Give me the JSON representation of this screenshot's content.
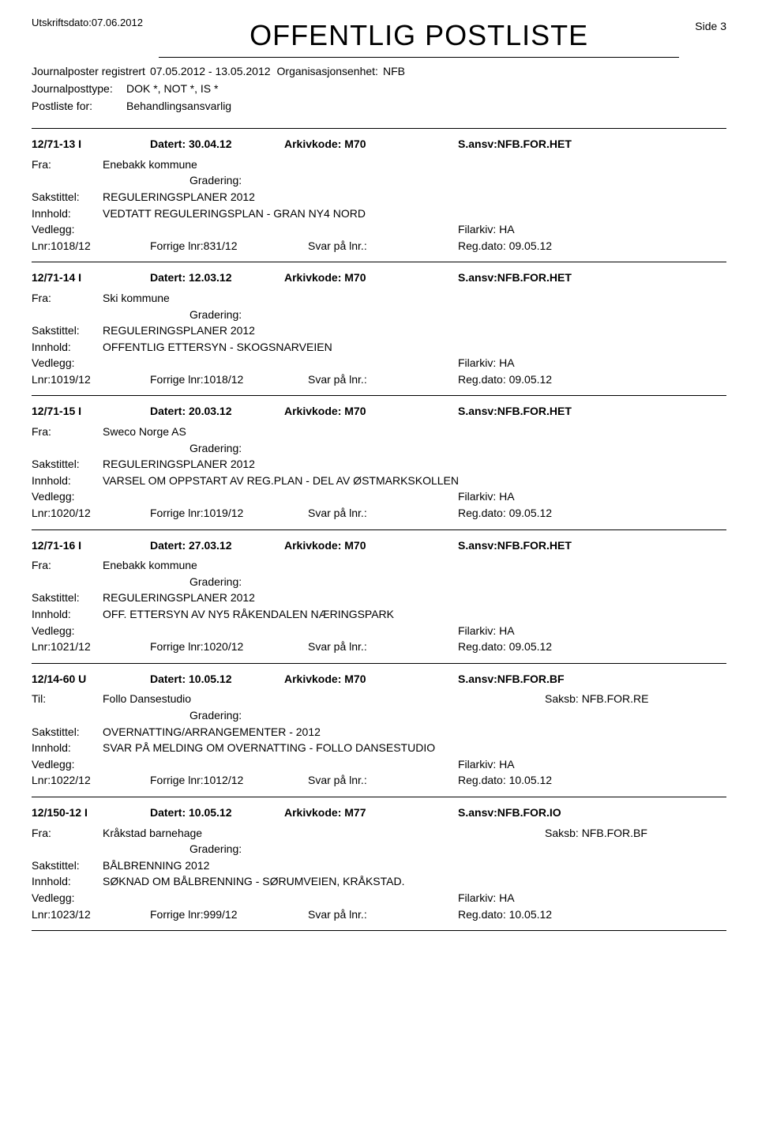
{
  "header": {
    "print_date_label": "Utskriftsdato:",
    "print_date": "07.06.2012",
    "title": "OFFENTLIG POSTLISTE",
    "page": "Side 3"
  },
  "meta": {
    "registered_label": "Journalposter registrert",
    "registered_range": "07.05.2012 - 13.05.2012",
    "org_label": "Organisasjonsenhet:",
    "org": "NFB",
    "posttype_label": "Journalposttype:",
    "posttype": "DOK *, NOT *, IS *",
    "postliste_label": "Postliste for:",
    "postliste": "Behandlingsansvarlig"
  },
  "labels": {
    "datert": "Datert:",
    "arkivkode": "Arkivkode:",
    "sansv": "S.ansv:",
    "fra": "Fra:",
    "til": "Til:",
    "saksb": "Saksb:",
    "gradering": "Gradering:",
    "sakstitel": "Sakstittel:",
    "innhold": "Innhold:",
    "vedlegg": "Vedlegg:",
    "filarkiv": "Filarkiv:",
    "lnr": "Lnr:",
    "forrige": "Forrige lnr:",
    "svar": "Svar på lnr.:",
    "regdato": "Reg.dato:"
  },
  "entries": [
    {
      "id": "12/71-13 I",
      "date": "30.04.12",
      "ark": "M70",
      "ansv": "NFB.FOR.HET",
      "dir": "Fra:",
      "party": "Enebakk kommune",
      "saksb": "",
      "sakstitel": "REGULERINGSPLANER 2012",
      "innhold": "VEDTATT REGULERINGSPLAN - GRAN NY4 NORD",
      "filarkiv": "HA",
      "lnr": "1018/12",
      "forrige": "831/12",
      "svar": "",
      "regdato": "09.05.12"
    },
    {
      "id": "12/71-14 I",
      "date": "12.03.12",
      "ark": "M70",
      "ansv": "NFB.FOR.HET",
      "dir": "Fra:",
      "party": "Ski kommune",
      "saksb": "",
      "sakstitel": "REGULERINGSPLANER 2012",
      "innhold": "OFFENTLIG ETTERSYN - SKOGSNARVEIEN",
      "filarkiv": "HA",
      "lnr": "1019/12",
      "forrige": "1018/12",
      "svar": "",
      "regdato": "09.05.12"
    },
    {
      "id": "12/71-15 I",
      "date": "20.03.12",
      "ark": "M70",
      "ansv": "NFB.FOR.HET",
      "dir": "Fra:",
      "party": "Sweco Norge AS",
      "saksb": "",
      "sakstitel": "REGULERINGSPLANER 2012",
      "innhold": "VARSEL OM OPPSTART AV REG.PLAN - DEL AV ØSTMARKSKOLLEN",
      "filarkiv": "HA",
      "lnr": "1020/12",
      "forrige": "1019/12",
      "svar": "",
      "regdato": "09.05.12"
    },
    {
      "id": "12/71-16 I",
      "date": "27.03.12",
      "ark": "M70",
      "ansv": "NFB.FOR.HET",
      "dir": "Fra:",
      "party": "Enebakk kommune",
      "saksb": "",
      "sakstitel": "REGULERINGSPLANER 2012",
      "innhold": "OFF. ETTERSYN AV NY5 RÅKENDALEN NÆRINGSPARK",
      "filarkiv": "HA",
      "lnr": "1021/12",
      "forrige": "1020/12",
      "svar": "",
      "regdato": "09.05.12"
    },
    {
      "id": "12/14-60 U",
      "date": "10.05.12",
      "ark": "M70",
      "ansv": "NFB.FOR.BF",
      "dir": "Til:",
      "party": "Follo Dansestudio",
      "saksb": "NFB.FOR.RE",
      "sakstitel": "OVERNATTING/ARRANGEMENTER - 2012",
      "innhold": "SVAR PÅ MELDING OM OVERNATTING - FOLLO DANSESTUDIO",
      "filarkiv": "HA",
      "lnr": "1022/12",
      "forrige": "1012/12",
      "svar": "",
      "regdato": "10.05.12"
    },
    {
      "id": "12/150-12 I",
      "date": "10.05.12",
      "ark": "M77",
      "ansv": "NFB.FOR.IO",
      "dir": "Fra:",
      "party": "Kråkstad barnehage",
      "saksb": "NFB.FOR.BF",
      "sakstitel": "BÅLBRENNING 2012",
      "innhold": "SØKNAD OM BÅLBRENNING - SØRUMVEIEN, KRÅKSTAD.",
      "filarkiv": "HA",
      "lnr": "1023/12",
      "forrige": "999/12",
      "svar": "",
      "regdato": "10.05.12"
    }
  ]
}
